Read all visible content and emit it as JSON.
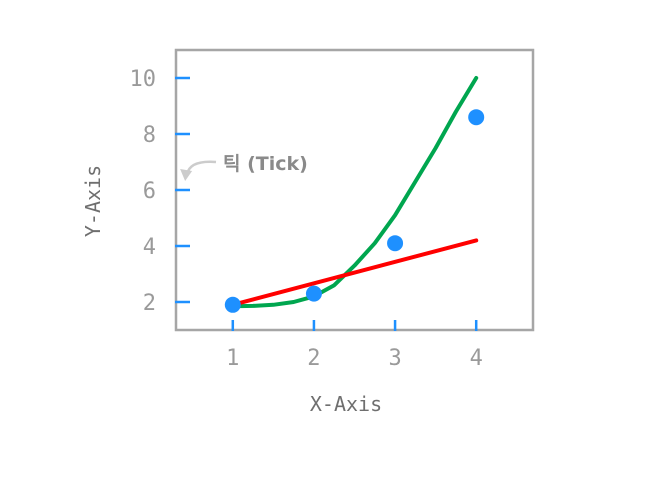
{
  "chart_data": {
    "type": "line",
    "xlabel": "X-Axis",
    "ylabel": "Y-Axis",
    "xlim": [
      0.3,
      4.7
    ],
    "ylim": [
      1.0,
      11.0
    ],
    "xticks": [
      1,
      2,
      3,
      4
    ],
    "yticks": [
      2,
      4,
      6,
      8,
      10
    ],
    "grid": false,
    "series": [
      {
        "kind": "scatter",
        "x": [
          1,
          2,
          3,
          4
        ],
        "y": [
          1.9,
          2.3,
          4.1,
          8.6
        ],
        "color": "#1e90ff"
      },
      {
        "kind": "line",
        "x": [
          1.0,
          1.25,
          1.5,
          1.75,
          2.0,
          2.25,
          2.5,
          2.75,
          3.0,
          3.25,
          3.5,
          3.75,
          4.0
        ],
        "y": [
          1.85,
          1.86,
          1.9,
          2.0,
          2.2,
          2.6,
          3.3,
          4.1,
          5.1,
          6.3,
          7.5,
          8.8,
          10.0
        ],
        "color": "#00a64f"
      },
      {
        "kind": "line",
        "x": [
          1,
          4
        ],
        "y": [
          1.9,
          4.2
        ],
        "color": "#ff0000"
      }
    ],
    "annotation": {
      "text": "틱 (Tick)",
      "target_x": 0.4,
      "target_y": 6.0
    },
    "colors": {
      "frame": "#a6a6a6",
      "tick_mark": "#1e90ff",
      "arrow": "#cccccc"
    }
  }
}
